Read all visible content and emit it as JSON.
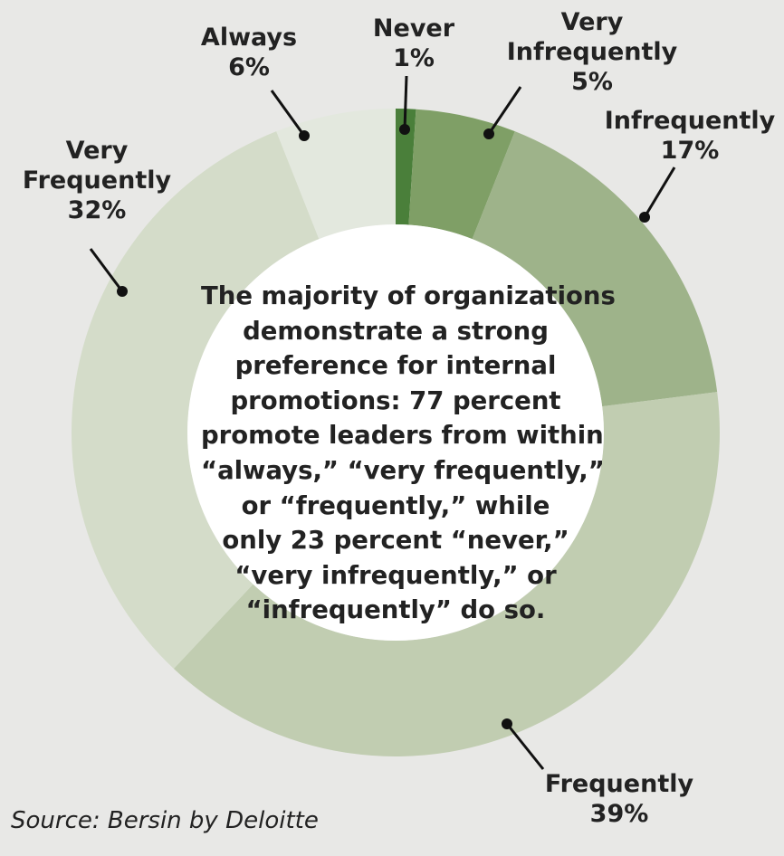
{
  "chart_data": {
    "type": "pie",
    "donut": true,
    "categories": [
      "Never",
      "Very Infrequently",
      "Infrequently",
      "Frequently",
      "Very Frequently",
      "Always"
    ],
    "values": [
      1,
      5,
      17,
      39,
      32,
      6
    ],
    "value_labels": [
      "1%",
      "5%",
      "17%",
      "39%",
      "32%",
      "6%"
    ],
    "label_lines": [
      [
        "Never"
      ],
      [
        "Very",
        "Infrequently"
      ],
      [
        "Infrequently"
      ],
      [
        "Frequently"
      ],
      [
        "Very",
        "Frequently"
      ],
      [
        "Always"
      ]
    ],
    "colors": [
      "#4a7f3a",
      "#7f9f66",
      "#9eb38a",
      "#c1cdb1",
      "#d4dcc9",
      "#e3e8de"
    ],
    "center_text_lines": [
      "The majority of organizations",
      "demonstrate a strong",
      "preference for internal",
      "promotions: 77 percent",
      "promote leaders from within",
      "“always,” “very frequently,”",
      "or “frequently,” while",
      "only 23 percent “never,”",
      "“very infrequently,” or",
      "“infrequently” do so."
    ],
    "source": "Source: Bersin by Deloitte"
  }
}
